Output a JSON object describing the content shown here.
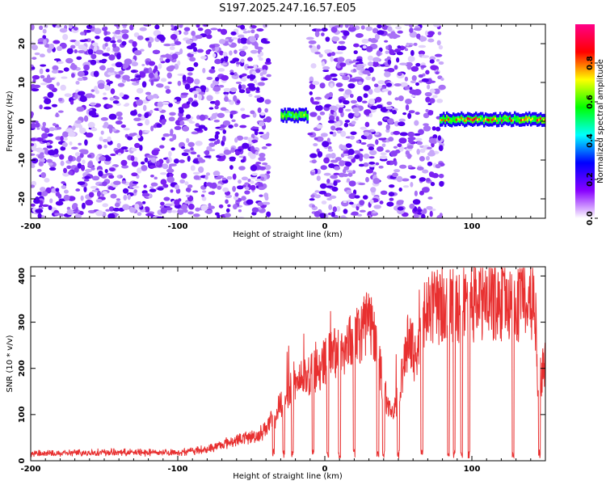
{
  "title": "S197.2025.247.16.57.E05",
  "chart_data": [
    {
      "type": "heatmap",
      "title": "",
      "xlabel": "Height of straight line (km)",
      "ylabel": "Frequency (Hz)",
      "xlim": [
        -200,
        150
      ],
      "ylim": [
        -25,
        25
      ],
      "xticks": [
        -200,
        -100,
        0,
        100
      ],
      "yticks": [
        -20,
        -10,
        0,
        10,
        20
      ],
      "colorbar": {
        "label": "Normalized spectral amplitude",
        "range": [
          0,
          1
        ],
        "ticks": [
          0.0,
          0.2,
          0.4,
          0.6,
          0.8
        ],
        "colors": [
          "#ffffff",
          "#8800ff",
          "#0000ff",
          "#00ffff",
          "#00ff00",
          "#ffff00",
          "#ff0000",
          "#ff0088"
        ]
      },
      "noise_regions_km": [
        [
          -200,
          -38
        ],
        [
          -10,
          80
        ]
      ],
      "gap_regions_km": [
        [
          -30,
          -18
        ],
        [
          80,
          150
        ]
      ],
      "signal_segments": [
        {
          "x_from": -30,
          "x_to": -12,
          "freq_hz": 1.5,
          "peak_amplitude": 0.75
        },
        {
          "x_from": 78,
          "x_to": 150,
          "freq_hz": 0.5,
          "peak_amplitude": 0.95
        }
      ]
    },
    {
      "type": "line",
      "title": "",
      "xlabel": "Height of straight line (km)",
      "ylabel": "SNR (10 * v/v)",
      "xlim": [
        -200,
        150
      ],
      "ylim": [
        0,
        420
      ],
      "xticks": [
        -200,
        -100,
        0,
        100
      ],
      "yticks": [
        0,
        100,
        200,
        300,
        400
      ],
      "series_color": "#e83030",
      "envelope_points": [
        {
          "x": -200,
          "snr": 15
        },
        {
          "x": -150,
          "snr": 18
        },
        {
          "x": -100,
          "snr": 18
        },
        {
          "x": -80,
          "snr": 25
        },
        {
          "x": -60,
          "snr": 45
        },
        {
          "x": -45,
          "snr": 55
        },
        {
          "x": -35,
          "snr": 90
        },
        {
          "x": -25,
          "snr": 150
        },
        {
          "x": -15,
          "snr": 180
        },
        {
          "x": -5,
          "snr": 200
        },
        {
          "x": 5,
          "snr": 230
        },
        {
          "x": 15,
          "snr": 250
        },
        {
          "x": 25,
          "snr": 280
        },
        {
          "x": 30,
          "snr": 310
        },
        {
          "x": 35,
          "snr": 240
        },
        {
          "x": 45,
          "snr": 90
        },
        {
          "x": 52,
          "snr": 170
        },
        {
          "x": 57,
          "snr": 270
        },
        {
          "x": 62,
          "snr": 220
        },
        {
          "x": 68,
          "snr": 330
        },
        {
          "x": 80,
          "snr": 330
        },
        {
          "x": 95,
          "snr": 340
        },
        {
          "x": 110,
          "snr": 345
        },
        {
          "x": 125,
          "snr": 340
        },
        {
          "x": 140,
          "snr": 350
        },
        {
          "x": 143,
          "snr": 330
        },
        {
          "x": 145,
          "snr": 170
        },
        {
          "x": 150,
          "snr": 210
        }
      ],
      "dropouts_km": [
        -35,
        -28,
        -22,
        -8,
        2,
        10,
        20,
        36,
        40,
        50,
        66,
        84,
        88,
        93,
        98,
        128,
        146
      ]
    }
  ]
}
